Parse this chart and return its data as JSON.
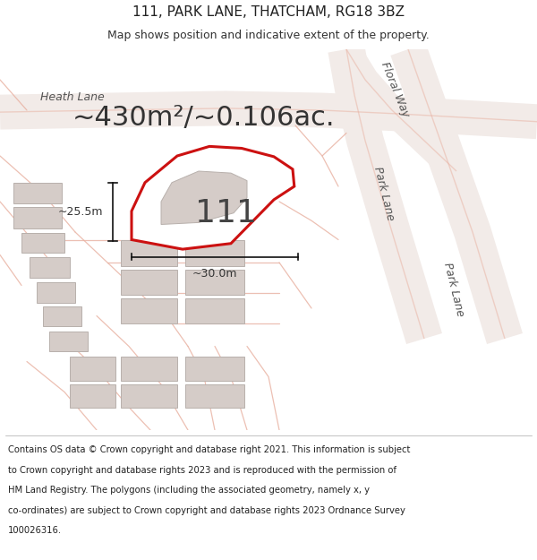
{
  "title": "111, PARK LANE, THATCHAM, RG18 3BZ",
  "subtitle": "Map shows position and indicative extent of the property.",
  "area_label": "~430m²/~0.106ac.",
  "property_number": "111",
  "dim_vertical": "~25.5m",
  "dim_horizontal": "~30.0m",
  "footer_line1": "Contains OS data © Crown copyright and database right 2021. This information is subject",
  "footer_line2": "to Crown copyright and database rights 2023 and is reproduced with the permission of",
  "footer_line3": "HM Land Registry. The polygons (including the associated geometry, namely x, y",
  "footer_line4": "co-ordinates) are subject to Crown copyright and database rights 2023 Ordnance Survey",
  "footer_line5": "100026316.",
  "bg_color": "#ffffff",
  "road_fill": "#f2ebe8",
  "road_stroke": "#e8b0a0",
  "building_fill": "#d5ccc8",
  "building_stroke": "#b8b0ac",
  "plot_stroke": "#cc1111",
  "plot_fill": "#ffffff",
  "dim_line_color": "#111111",
  "title_fontsize": 11,
  "subtitle_fontsize": 9,
  "area_fontsize": 22,
  "number_fontsize": 26,
  "dim_fontsize": 9,
  "footer_fontsize": 7.2,
  "road_label_color": "#555555",
  "road_label_fontsize": 9
}
